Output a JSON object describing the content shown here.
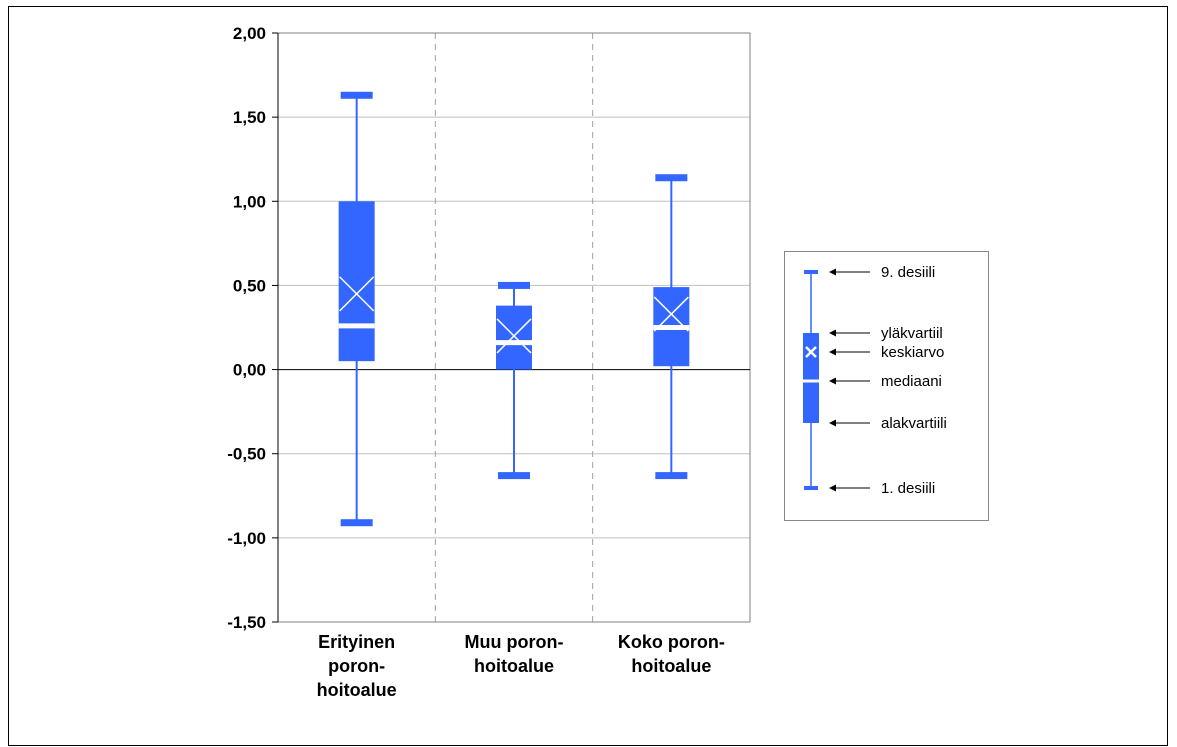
{
  "chart_data": {
    "type": "boxplot",
    "title": "",
    "xlabel": "",
    "ylabel": "",
    "ylim": [
      -1.5,
      2.0
    ],
    "yticks": [
      2.0,
      1.5,
      1.0,
      0.5,
      0.0,
      -0.5,
      -1.0,
      -1.5
    ],
    "ytick_labels": [
      "2,00",
      "1,50",
      "1,00",
      "0,50",
      "0,00",
      "-0,50",
      "-1,00",
      "-1,50"
    ],
    "grid": true,
    "color": "#3366FF",
    "categories": [
      [
        "Erityinen",
        "poron-",
        "hoitoalue"
      ],
      [
        "Muu poron-",
        "hoitoalue"
      ],
      [
        "Koko poron-",
        "hoitoalue"
      ]
    ],
    "boxes": [
      {
        "d1": -0.91,
        "q1": 0.05,
        "median": 0.26,
        "mean": 0.45,
        "q3": 1.0,
        "d9": 1.63
      },
      {
        "d1": -0.63,
        "q1": 0.0,
        "median": 0.16,
        "mean": 0.2,
        "q3": 0.38,
        "d9": 0.5
      },
      {
        "d1": -0.63,
        "q1": 0.02,
        "median": 0.25,
        "mean": 0.33,
        "q3": 0.49,
        "d9": 1.14
      }
    ],
    "legend": {
      "position": "right",
      "items": [
        "9. desiili",
        "yläkvartiil",
        "keskiarvo",
        "mediaani",
        "alakvartiili",
        "1. desiili"
      ]
    }
  }
}
